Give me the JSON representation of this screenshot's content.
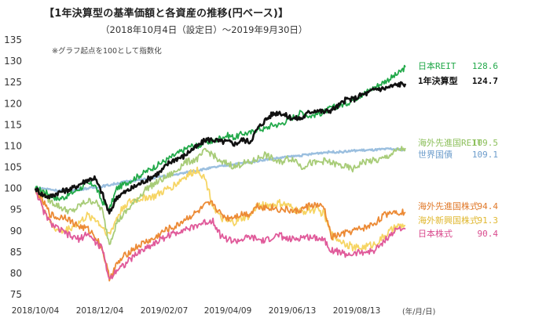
{
  "title": "【1年決算型の基準価額と各資産の推移(円ベース)】",
  "subtitle": "（2018年10月4日（設定日）～2019年9月30日）",
  "note": "※グラフ起点を100として指数化",
  "chart_data": {
    "type": "line",
    "ylim": [
      75,
      135
    ],
    "yticks": [
      75,
      80,
      85,
      90,
      95,
      100,
      105,
      110,
      115,
      120,
      125,
      130,
      135
    ],
    "x_tick_labels": [
      "2018/10/04",
      "2018/12/04",
      "2019/02/07",
      "2019/04/09",
      "2019/06/13",
      "2019/08/13"
    ],
    "x_unit": "(年/月/日)",
    "x": [
      0,
      0.02,
      0.04,
      0.06,
      0.08,
      0.1,
      0.12,
      0.14,
      0.16,
      0.18,
      0.2,
      0.22,
      0.24,
      0.26,
      0.28,
      0.3,
      0.32,
      0.34,
      0.36,
      0.38,
      0.4,
      0.42,
      0.44,
      0.46,
      0.48,
      0.5,
      0.52,
      0.54,
      0.56,
      0.58,
      0.6,
      0.62,
      0.64,
      0.66,
      0.68,
      0.7,
      0.72,
      0.74,
      0.76,
      0.78,
      0.8,
      0.82,
      0.84,
      0.86,
      0.88,
      0.9,
      0.92,
      0.94,
      0.96,
      0.98,
      1.0
    ],
    "series": [
      {
        "name": "日本REIT",
        "value_label": "128.6",
        "color": "#22a94a",
        "width": 1.8,
        "values": [
          100,
          99.5,
          98.5,
          97.5,
          98,
          99,
          100,
          101,
          101,
          97,
          95,
          100,
          101,
          102,
          103,
          104,
          105,
          106,
          107,
          108,
          109,
          110,
          110,
          111,
          111,
          112,
          112.5,
          112,
          113,
          113,
          114,
          114,
          115,
          115,
          116,
          117,
          118,
          117,
          117.5,
          118,
          119,
          119.5,
          120,
          121,
          122,
          123,
          124,
          125,
          126,
          127,
          128.6
        ]
      },
      {
        "name": "1年決算型",
        "value_label": "124.7",
        "color": "#111111",
        "width": 2.6,
        "values": [
          100,
          98.5,
          98,
          99,
          99.5,
          100,
          101,
          102,
          102.5,
          99,
          94,
          98,
          99,
          100,
          101,
          102,
          103,
          104,
          106,
          107,
          107.5,
          109,
          110,
          111.5,
          111.5,
          111,
          111,
          110.5,
          111.5,
          111,
          114,
          116,
          117.5,
          118,
          117,
          116.5,
          116.5,
          118,
          118.5,
          118,
          118.5,
          119.5,
          121,
          121,
          122,
          122.5,
          123.5,
          123.5,
          124,
          124.5,
          124.7
        ]
      },
      {
        "name": "海外先進国REIT",
        "value_label": "109.5",
        "color": "#a8cc78",
        "width": 1.8,
        "values": [
          100,
          99,
          97,
          96,
          95,
          94.5,
          96,
          97,
          97,
          95,
          87,
          92,
          94,
          96,
          98,
          100,
          101,
          102,
          103,
          104,
          106,
          106.5,
          107,
          109,
          108,
          106,
          106,
          105,
          106,
          106,
          107,
          108,
          107,
          106,
          107,
          107,
          105,
          106,
          106,
          106.5,
          106,
          105.5,
          105,
          104.5,
          106,
          106.5,
          106.5,
          107,
          108,
          109,
          109.5
        ]
      },
      {
        "name": "世界国債",
        "value_label": "109.1",
        "color": "#9bbfdf",
        "width": 2.4,
        "values": [
          100,
          100,
          99.8,
          99.5,
          99.5,
          99.6,
          99.8,
          100,
          100.2,
          100.5,
          100.8,
          101.2,
          101.5,
          101.8,
          102,
          102.2,
          102.5,
          102.8,
          103,
          103.3,
          103.6,
          104,
          104.3,
          104.6,
          104.9,
          105.2,
          105.5,
          105.7,
          106,
          106.2,
          106.5,
          106.8,
          107,
          107.2,
          107.4,
          107.6,
          107.8,
          108,
          108.3,
          108.5,
          108.6,
          108.6,
          108.7,
          108.9,
          109,
          109,
          109.1,
          109.2,
          109.3,
          109.2,
          109.1
        ]
      },
      {
        "name": "海外先進国株式",
        "value_label": "94.4",
        "color": "#ec8a35",
        "width": 1.8,
        "values": [
          100,
          97,
          94,
          93,
          93.5,
          92,
          91,
          90.5,
          89,
          86,
          79,
          82,
          84,
          85.5,
          86.5,
          87.5,
          88,
          89.5,
          90.5,
          91,
          92.5,
          93.5,
          94.5,
          96,
          96.5,
          94,
          93,
          93.5,
          94,
          94,
          96,
          95.5,
          95.5,
          95,
          95,
          94.5,
          95,
          96,
          96,
          95.5,
          88.5,
          89,
          89.5,
          90,
          90.5,
          91,
          92,
          93.5,
          94.5,
          94.5,
          94.4
        ]
      },
      {
        "name": "海外新興国株式",
        "value_label": "91.3",
        "color": "#f6d564",
        "width": 1.8,
        "values": [
          100,
          96,
          92,
          90,
          90,
          91,
          92,
          93.5,
          93,
          91,
          89,
          93,
          96,
          97,
          97.5,
          98,
          98,
          99,
          100,
          101,
          102.5,
          103.5,
          104.5,
          102,
          96,
          93,
          92,
          92,
          93,
          93.5,
          96,
          96,
          96,
          96.5,
          96,
          95,
          94.5,
          95,
          95,
          94,
          89,
          88,
          87,
          86,
          86,
          86.5,
          87,
          88.5,
          90,
          91,
          91.3
        ]
      },
      {
        "name": "日本株式",
        "value_label": "90.4",
        "color": "#e05a9a",
        "width": 1.8,
        "values": [
          100,
          95,
          92,
          90.5,
          89.5,
          88.5,
          88,
          89.5,
          87.5,
          86,
          78.5,
          81,
          82,
          83.5,
          85,
          86,
          87,
          88,
          89,
          89.5,
          90.5,
          90.5,
          91.5,
          92,
          92.5,
          89,
          88,
          87.5,
          88,
          88.5,
          88,
          87.5,
          88.5,
          89,
          88,
          88,
          88.5,
          88.5,
          88.5,
          88,
          85.5,
          85,
          84.5,
          84.5,
          85,
          85,
          85.5,
          87.5,
          89,
          90.5,
          90.4
        ]
      }
    ]
  }
}
